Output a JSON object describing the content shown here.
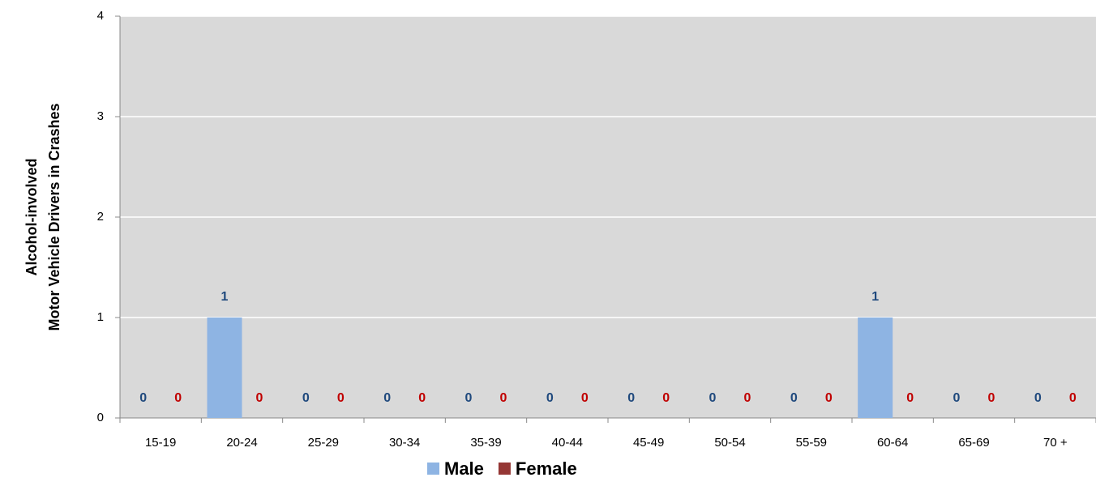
{
  "chart_data": {
    "type": "bar",
    "y_label": [
      "Alcohol-involved",
      "Motor Vehicle Drivers in Crashes"
    ],
    "categories": [
      "15-19",
      "20-24",
      "25-29",
      "30-34",
      "35-39",
      "40-44",
      "45-49",
      "50-54",
      "55-59",
      "60-64",
      "65-69",
      "70 +"
    ],
    "series": [
      {
        "name": "Male",
        "color": "#8eb4e3",
        "label_color": "#1f497d",
        "values": [
          0,
          1,
          0,
          0,
          0,
          0,
          0,
          0,
          0,
          1,
          0,
          0
        ]
      },
      {
        "name": "Female",
        "color": "#953735",
        "label_color": "#c00000",
        "values": [
          0,
          0,
          0,
          0,
          0,
          0,
          0,
          0,
          0,
          0,
          0,
          0
        ]
      }
    ],
    "ylim": [
      0,
      4
    ],
    "yticks": [
      0,
      1,
      2,
      3,
      4
    ],
    "grid": true,
    "legend": "bottom"
  }
}
